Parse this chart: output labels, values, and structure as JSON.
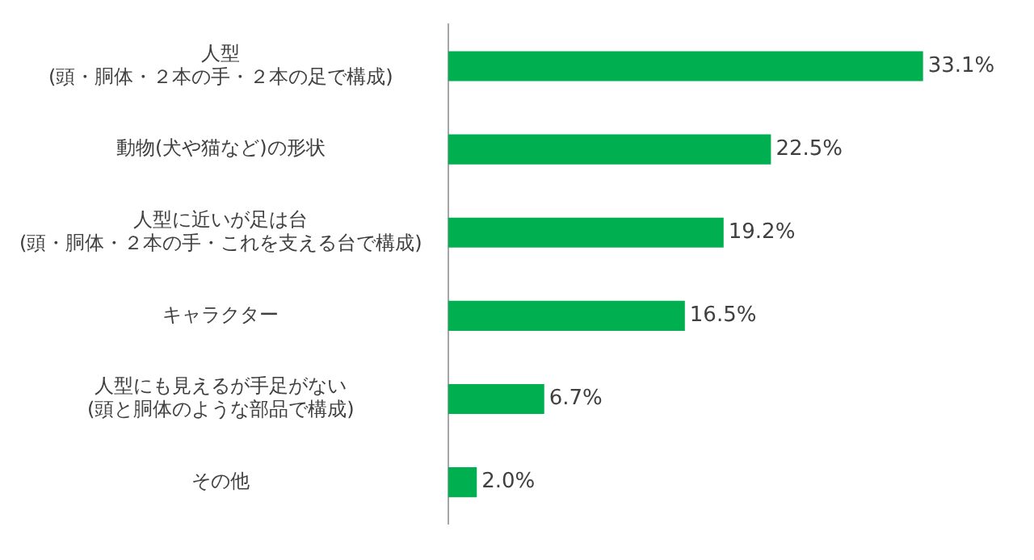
{
  "chart_data": {
    "type": "bar",
    "orientation": "horizontal",
    "categories": [
      "人型\n(頭・胴体・２本の手・２本の足で構成)",
      "動物(犬や猫など)の形状",
      "人型に近いが足は台\n(頭・胴体・２本の手・これを支える台で構成)",
      "キャラクター",
      "人型にも見えるが手足がない\n(頭と胴体のような部品で構成)",
      "その他"
    ],
    "values": [
      33.1,
      22.5,
      19.2,
      16.5,
      6.7,
      2.0
    ],
    "value_labels": [
      "33.1%",
      "22.5%",
      "19.2%",
      "16.5%",
      "6.7%",
      "2.0%"
    ],
    "color": "#00b050"
  }
}
